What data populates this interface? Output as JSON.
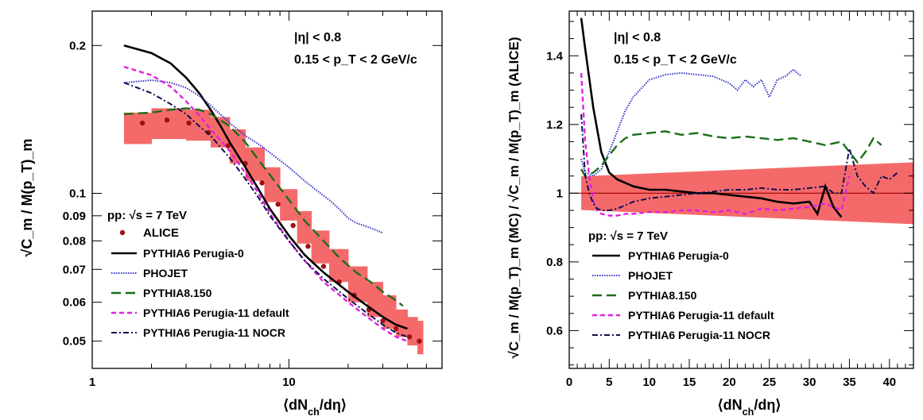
{
  "colors": {
    "alice_band": "#f46a6a",
    "alice_point": "#a01010",
    "perugia0": "#000000",
    "phojet": "#3333cc",
    "pythia8": "#1a6e1a",
    "p11default": "#e020e0",
    "p11nocr": "#101050",
    "ref_line": "#a00000"
  },
  "chart_data": [
    {
      "type": "line",
      "xscale": "log",
      "yscale": "log",
      "xlim": [
        1,
        60
      ],
      "ylim": [
        0.044,
        0.235
      ],
      "xlabel": "⟨dN_ch/dη⟩",
      "ylabel": "√C_m / M(p_T)_m",
      "xticks": [
        1,
        10
      ],
      "xtick_labels": [
        "1",
        "10"
      ],
      "yticks": [
        0.05,
        0.06,
        0.07,
        0.08,
        0.09,
        0.1,
        0.2
      ],
      "ytick_labels": [
        "0.05",
        "0.06",
        "0.07",
        "0.08",
        "0.09",
        "0.1",
        "0.2"
      ],
      "annotations": [
        "|η| < 0.8",
        "0.15 < p_T < 2 GeV/c"
      ],
      "legend_header": "pp:  √s = 7 TeV",
      "legend_placement": "bottom-left",
      "alice": {
        "name": "ALICE",
        "x": [
          1.8,
          2.4,
          3.1,
          3.9,
          4.9,
          6.0,
          7.3,
          8.8,
          10.5,
          12.5,
          15.0,
          18.0,
          21.5,
          25.5,
          30.0,
          35.0,
          41.0,
          46.0
        ],
        "y": [
          0.139,
          0.141,
          0.139,
          0.133,
          0.125,
          0.115,
          0.105,
          0.095,
          0.086,
          0.078,
          0.071,
          0.066,
          0.062,
          0.058,
          0.055,
          0.053,
          0.051,
          0.05
        ],
        "band_x": [
          1.45,
          2.0,
          3.0,
          4.0,
          5.0,
          6.0,
          7.5,
          9.0,
          11.0,
          13.0,
          16.0,
          20.0,
          25.0,
          30.0,
          35.0,
          40.0,
          45.0,
          48.0
        ],
        "band_lo": [
          0.126,
          0.129,
          0.128,
          0.124,
          0.115,
          0.106,
          0.096,
          0.088,
          0.079,
          0.072,
          0.066,
          0.06,
          0.056,
          0.053,
          0.051,
          0.049,
          0.047,
          0.046
        ],
        "band_hi": [
          0.146,
          0.149,
          0.148,
          0.143,
          0.135,
          0.124,
          0.113,
          0.102,
          0.092,
          0.084,
          0.077,
          0.071,
          0.066,
          0.062,
          0.058,
          0.056,
          0.055,
          0.054
        ]
      },
      "series": [
        {
          "name": "PYTHIA6 Perugia-0",
          "key": "perugia0",
          "x": [
            1.45,
            2.0,
            2.5,
            3.0,
            3.5,
            4.0,
            4.5,
            5.0,
            6.0,
            7.0,
            8.0,
            10.0,
            12.0,
            15.0,
            20.0,
            25.0,
            30.0,
            35.0,
            40.0
          ],
          "y": [
            0.2,
            0.193,
            0.184,
            0.172,
            0.16,
            0.148,
            0.137,
            0.127,
            0.113,
            0.102,
            0.093,
            0.082,
            0.075,
            0.069,
            0.063,
            0.059,
            0.056,
            0.054,
            0.053
          ]
        },
        {
          "name": "PHOJET",
          "key": "phojet",
          "x": [
            1.45,
            2.0,
            2.5,
            3.0,
            3.5,
            4.0,
            5.0,
            6.0,
            7.0,
            8.0,
            10.0,
            12.0,
            14.0,
            16.0,
            18.0,
            20.0,
            22.0,
            24.0,
            26.0,
            28.0,
            30.0
          ],
          "y": [
            0.168,
            0.17,
            0.168,
            0.164,
            0.158,
            0.151,
            0.139,
            0.131,
            0.126,
            0.121,
            0.113,
            0.106,
            0.101,
            0.097,
            0.093,
            0.089,
            0.087,
            0.086,
            0.085,
            0.084,
            0.083
          ]
        },
        {
          "name": "PYTHIA8.150",
          "key": "pythia8",
          "x": [
            1.45,
            2.0,
            2.5,
            3.0,
            3.5,
            4.0,
            5.0,
            6.0,
            7.0,
            8.0,
            10.0,
            12.0,
            15.0,
            18.0,
            22.0,
            26.0,
            30.0,
            34.0,
            38.0
          ],
          "y": [
            0.145,
            0.146,
            0.148,
            0.149,
            0.148,
            0.145,
            0.137,
            0.127,
            0.117,
            0.109,
            0.097,
            0.088,
            0.08,
            0.074,
            0.069,
            0.066,
            0.063,
            0.061,
            0.059
          ]
        },
        {
          "name": "PYTHIA6 Perugia-11 default",
          "key": "p11default",
          "x": [
            1.45,
            2.0,
            2.5,
            3.0,
            3.5,
            4.0,
            5.0,
            6.0,
            7.0,
            8.0,
            10.0,
            12.0,
            15.0,
            20.0,
            25.0,
            30.0,
            35.0,
            40.0
          ],
          "y": [
            0.181,
            0.174,
            0.165,
            0.154,
            0.144,
            0.135,
            0.122,
            0.11,
            0.1,
            0.091,
            0.08,
            0.073,
            0.066,
            0.06,
            0.056,
            0.053,
            0.051,
            0.05
          ]
        },
        {
          "name": "PYTHIA6 Perugia-11 NOCR",
          "key": "p11nocr",
          "x": [
            1.45,
            2.0,
            2.5,
            3.0,
            3.5,
            4.0,
            5.0,
            6.0,
            7.0,
            8.0,
            10.0,
            12.0,
            15.0,
            20.0,
            25.0,
            30.0,
            35.0,
            40.0
          ],
          "y": [
            0.168,
            0.16,
            0.152,
            0.145,
            0.137,
            0.131,
            0.118,
            0.107,
            0.098,
            0.09,
            0.08,
            0.073,
            0.067,
            0.061,
            0.057,
            0.054,
            0.052,
            0.051
          ]
        }
      ]
    },
    {
      "type": "line",
      "xlim": [
        0,
        43
      ],
      "ylim": [
        0.49,
        1.53
      ],
      "xlabel": "⟨dN_ch/dη⟩",
      "ylabel": "√C_m / M(p_T)_m (MC) / √C_m / M(p_T)_m (ALICE)",
      "xticks": [
        0,
        5,
        10,
        15,
        20,
        25,
        30,
        35,
        40
      ],
      "xtick_labels": [
        "0",
        "5",
        "10",
        "15",
        "20",
        "25",
        "30",
        "35",
        "40"
      ],
      "yticks": [
        0.6,
        0.8,
        1.0,
        1.2,
        1.4
      ],
      "ytick_labels": [
        "0.6",
        "0.8",
        "1",
        "1.2",
        "1.4"
      ],
      "annotations": [
        "|η| < 0.8",
        "0.15 < p_T < 2 GeV/c"
      ],
      "legend_header": "pp:  √s = 7 TeV",
      "legend_placement": "bottom-left",
      "ref_y": 1.0,
      "band": {
        "x": [
          1.5,
          43
        ],
        "lo": [
          0.951,
          0.91
        ],
        "hi": [
          1.049,
          1.09
        ]
      },
      "series": [
        {
          "name": "PYTHIA6 Perugia-0",
          "key": "perugia0",
          "x": [
            1.5,
            2,
            3,
            4,
            5,
            6,
            7,
            8,
            10,
            12,
            14,
            16,
            18,
            20,
            22,
            24,
            26,
            28,
            30,
            31,
            32,
            33,
            34
          ],
          "y": [
            1.51,
            1.42,
            1.25,
            1.12,
            1.06,
            1.04,
            1.03,
            1.02,
            1.01,
            1.01,
            1.005,
            1.0,
            1.0,
            0.995,
            0.99,
            0.985,
            0.975,
            0.97,
            0.975,
            0.94,
            1.02,
            0.96,
            0.93
          ]
        },
        {
          "name": "PHOJET",
          "key": "phojet",
          "x": [
            1.5,
            2,
            3,
            4,
            5,
            6,
            7,
            8,
            10,
            12,
            14,
            16,
            18,
            20,
            21,
            22,
            23,
            24,
            25,
            26,
            27,
            28,
            29
          ],
          "y": [
            1.1,
            1.06,
            1.05,
            1.07,
            1.12,
            1.18,
            1.24,
            1.28,
            1.33,
            1.345,
            1.35,
            1.345,
            1.34,
            1.32,
            1.3,
            1.33,
            1.31,
            1.33,
            1.28,
            1.33,
            1.34,
            1.36,
            1.34
          ]
        },
        {
          "name": "PYTHIA8.150",
          "key": "pythia8",
          "x": [
            1.5,
            2,
            3,
            4,
            5,
            6,
            7,
            8,
            10,
            12,
            14,
            16,
            18,
            20,
            22,
            24,
            26,
            28,
            30,
            32,
            34,
            35,
            36,
            37,
            38,
            39
          ],
          "y": [
            1.07,
            1.05,
            1.06,
            1.08,
            1.11,
            1.14,
            1.16,
            1.17,
            1.175,
            1.18,
            1.17,
            1.175,
            1.165,
            1.16,
            1.165,
            1.16,
            1.155,
            1.16,
            1.15,
            1.14,
            1.15,
            1.12,
            1.09,
            1.12,
            1.16,
            1.14
          ]
        },
        {
          "name": "PYTHIA6 Perugia-11 default",
          "key": "p11default",
          "x": [
            1.5,
            2,
            2.5,
            3,
            3.5,
            4,
            5,
            6,
            7,
            8,
            10,
            12,
            14,
            16,
            18,
            20,
            22,
            24,
            26,
            28,
            30,
            32,
            34,
            35
          ],
          "y": [
            1.35,
            1.15,
            1.05,
            0.98,
            0.95,
            0.94,
            0.935,
            0.935,
            0.94,
            0.94,
            0.945,
            0.945,
            0.95,
            0.95,
            0.945,
            0.95,
            0.94,
            0.955,
            0.95,
            0.955,
            0.96,
            0.97,
            0.95,
            1.05
          ]
        },
        {
          "name": "PYTHIA6 Perugia-11 NOCR",
          "key": "p11nocr",
          "x": [
            1.5,
            2,
            2.5,
            3,
            3.5,
            4,
            5,
            6,
            7,
            8,
            10,
            12,
            14,
            16,
            18,
            20,
            22,
            24,
            26,
            28,
            30,
            32,
            33,
            34,
            35,
            36,
            37,
            38,
            39,
            40,
            41
          ],
          "y": [
            1.23,
            1.05,
            1.0,
            0.97,
            0.955,
            0.95,
            0.95,
            0.955,
            0.965,
            0.975,
            0.985,
            0.99,
            0.995,
            1.0,
            1.005,
            1.01,
            1.01,
            1.015,
            1.01,
            1.01,
            1.015,
            1.02,
            1.0,
            1.0,
            1.13,
            1.05,
            1.02,
            1.0,
            1.05,
            1.04,
            1.06
          ]
        }
      ]
    }
  ]
}
